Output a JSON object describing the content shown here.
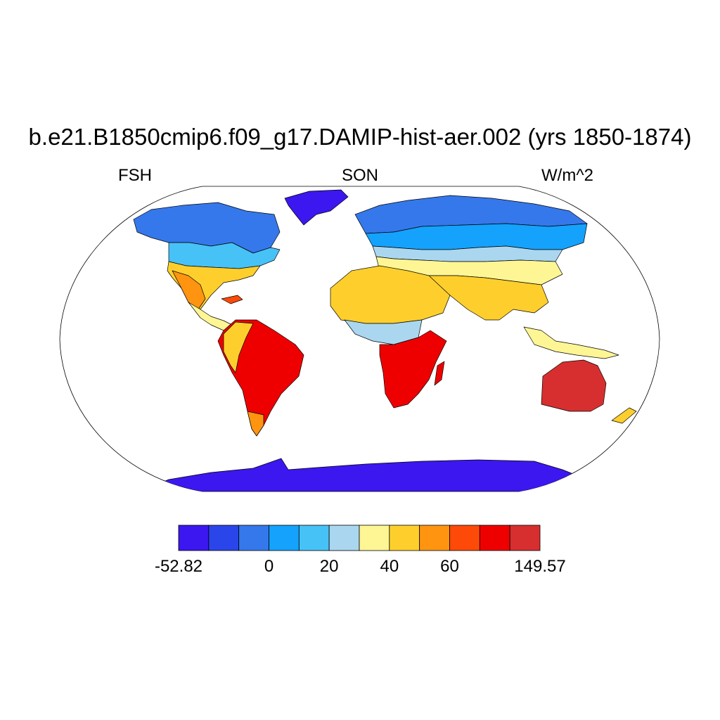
{
  "title": "b.e21.B1850cmip6.f09_g17.DAMIP-hist-aer.002 (yrs 1850-1874)",
  "subtitle_left": "FSH",
  "subtitle_center": "SON",
  "subtitle_right": "W/m^2",
  "colorbar": {
    "colors": [
      "#3c17f0",
      "#2a45ea",
      "#3578ec",
      "#14a2fd",
      "#47c2f6",
      "#aad7ef",
      "#fef694",
      "#fecf2c",
      "#fe9410",
      "#fd4a08",
      "#ee0000",
      "#d72f2f"
    ],
    "labels": [
      {
        "text": "-52.82",
        "boundary": 0
      },
      {
        "text": "0",
        "boundary": 3
      },
      {
        "text": "20",
        "boundary": 5
      },
      {
        "text": "40",
        "boundary": 7
      },
      {
        "text": "60",
        "boundary": 9
      },
      {
        "text": "149.57",
        "boundary": 12
      }
    ]
  },
  "map": {
    "projection": "Robinson",
    "ocean_color": "#ffffff"
  }
}
